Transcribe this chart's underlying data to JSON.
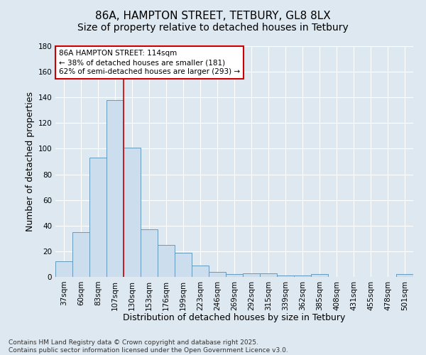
{
  "title": "86A, HAMPTON STREET, TETBURY, GL8 8LX",
  "subtitle": "Size of property relative to detached houses in Tetbury",
  "xlabel": "Distribution of detached houses by size in Tetbury",
  "ylabel": "Number of detached properties",
  "bar_color": "#ccdded",
  "bar_edge_color": "#6699bb",
  "background_color": "#dde8f0",
  "grid_color": "#ffffff",
  "categories": [
    "37sqm",
    "60sqm",
    "83sqm",
    "107sqm",
    "130sqm",
    "153sqm",
    "176sqm",
    "199sqm",
    "223sqm",
    "246sqm",
    "269sqm",
    "292sqm",
    "315sqm",
    "339sqm",
    "362sqm",
    "385sqm",
    "408sqm",
    "431sqm",
    "455sqm",
    "478sqm",
    "501sqm"
  ],
  "values": [
    12,
    35,
    93,
    138,
    101,
    37,
    25,
    19,
    9,
    4,
    2,
    3,
    3,
    1,
    1,
    2,
    0,
    0,
    0,
    0,
    2
  ],
  "ylim": [
    0,
    180
  ],
  "yticks": [
    0,
    20,
    40,
    60,
    80,
    100,
    120,
    140,
    160,
    180
  ],
  "vline_x": 3.5,
  "vline_color": "#cc0000",
  "annotation_text": "86A HAMPTON STREET: 114sqm\n← 38% of detached houses are smaller (181)\n62% of semi-detached houses are larger (293) →",
  "annotation_box_color": "#ffffff",
  "annotation_border_color": "#cc0000",
  "footer_text": "Contains HM Land Registry data © Crown copyright and database right 2025.\nContains public sector information licensed under the Open Government Licence v3.0.",
  "title_fontsize": 11,
  "subtitle_fontsize": 10,
  "xlabel_fontsize": 9,
  "ylabel_fontsize": 9,
  "tick_fontsize": 7.5,
  "annotation_fontsize": 7.5,
  "footer_fontsize": 6.5
}
